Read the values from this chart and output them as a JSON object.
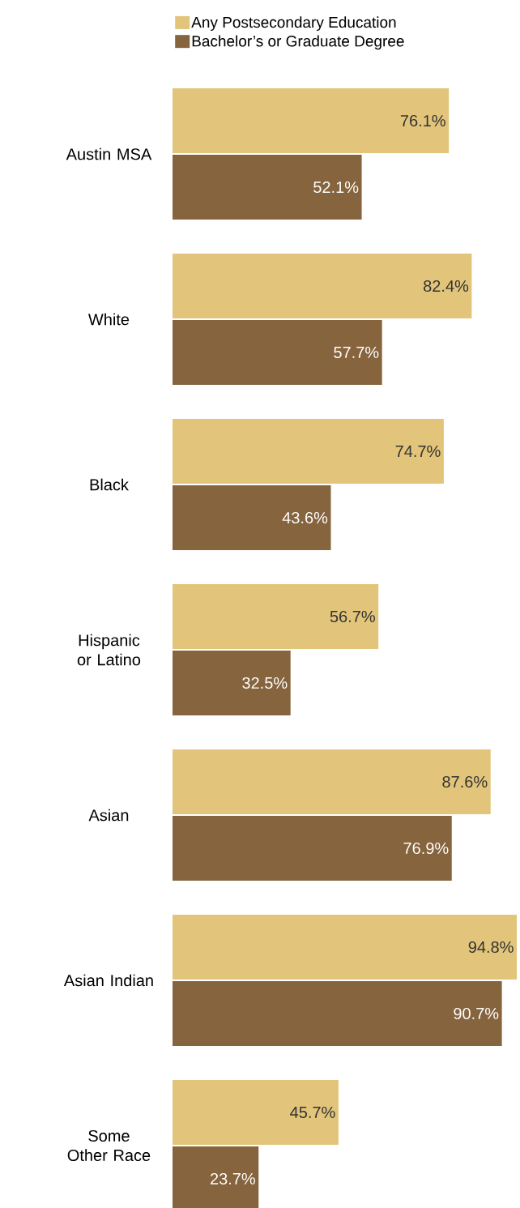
{
  "chart_data": {
    "type": "bar",
    "orientation": "horizontal",
    "legend": "top left",
    "categories": [
      "Austin MSA",
      "White",
      "Black",
      "Hispanic or Latino",
      "Asian",
      "Asian Indian",
      "Some Other Race"
    ],
    "series": [
      {
        "name": "Any Postsecondary Education",
        "color": "#e2c57a",
        "values": [
          76.1,
          82.4,
          74.7,
          56.7,
          87.6,
          94.8,
          45.7
        ],
        "value_labels": [
          "76.1%",
          "82.4%",
          "74.7%",
          "56.7%",
          "87.6%",
          "94.8%",
          "45.7%"
        ]
      },
      {
        "name": "Bachelor’s or Graduate Degree",
        "color": "#86643d",
        "values": [
          52.1,
          57.7,
          43.6,
          32.5,
          76.9,
          90.7,
          23.7
        ],
        "value_labels": [
          "52.1%",
          "57.7%",
          "43.6%",
          "32.5%",
          "76.9%",
          "90.7%",
          "23.7%"
        ]
      }
    ]
  }
}
